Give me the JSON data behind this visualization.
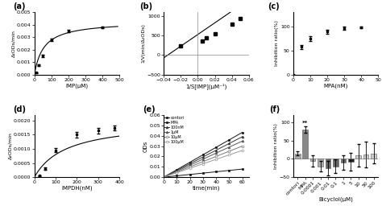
{
  "panel_a": {
    "label": "(a)",
    "x": [
      10,
      25,
      50,
      100,
      200,
      400
    ],
    "y": [
      0.00015,
      0.00075,
      0.0015,
      0.0028,
      0.0035,
      0.0038
    ],
    "yerr": [
      3e-05,
      6e-05,
      8e-05,
      0.0001,
      8e-05,
      7e-05
    ],
    "Vmax": 0.0043,
    "Km": 55,
    "xlabel": "IMP(μM)",
    "ylabel": "Δ₂ODs/min",
    "xlim": [
      0,
      500
    ],
    "ylim": [
      0,
      0.005
    ],
    "xticks": [
      0,
      100,
      200,
      300,
      400,
      500
    ],
    "yticks": [
      0.0,
      0.001,
      0.002,
      0.003,
      0.004,
      0.005
    ]
  },
  "panel_b": {
    "label": "(b)",
    "x": [
      -0.02,
      0.005,
      0.01,
      0.02,
      0.04,
      0.05
    ],
    "y": [
      230,
      355,
      435,
      550,
      800,
      950
    ],
    "slope": 15000,
    "intercept": 530,
    "xlabel": "1/S[IMP](μM⁻¹)",
    "ylabel": "1/V(min/Δ₂ODs)",
    "xlim": [
      -0.04,
      0.06
    ],
    "ylim": [
      -500,
      1100
    ],
    "xticks": [
      -0.04,
      -0.02,
      0.0,
      0.02,
      0.04,
      0.06
    ],
    "yticks": [
      -500,
      0,
      500,
      1000
    ]
  },
  "panel_c": {
    "label": "(c)",
    "x": [
      0,
      5,
      10,
      20,
      30,
      40
    ],
    "y": [
      0,
      58,
      75,
      90,
      97,
      99
    ],
    "yerr": [
      0,
      4,
      5,
      4,
      3,
      2
    ],
    "xlabel": "MPA(nM)",
    "ylabel": "Inhibition ratio(%)",
    "xlim": [
      0,
      50
    ],
    "ylim": [
      0,
      130
    ],
    "xticks": [
      0,
      10,
      20,
      30,
      40,
      50
    ],
    "yticks": [
      0,
      50,
      100
    ]
  },
  "panel_d": {
    "label": "(d)",
    "x": [
      25,
      50,
      100,
      200,
      300,
      375
    ],
    "y": [
      5e-05,
      0.0003,
      0.00095,
      0.0015,
      0.00165,
      0.00175
    ],
    "yerr": [
      2e-05,
      4e-05,
      7e-05,
      9e-05,
      0.0001,
      9e-05
    ],
    "Vmax": 0.002,
    "Km": 150,
    "xlabel": "IMPDH(nM)",
    "ylabel": "Δ₂ODs/min",
    "xlim": [
      0,
      400
    ],
    "ylim": [
      0,
      0.0022
    ],
    "xticks": [
      0,
      100,
      200,
      300,
      400
    ],
    "yticks": [
      0.0,
      0.0005,
      0.001,
      0.0015,
      0.002
    ]
  },
  "panel_e": {
    "label": "(e)",
    "time": [
      0,
      10,
      20,
      30,
      40,
      50,
      60
    ],
    "series": [
      {
        "label": "contori",
        "slope": 0.00072,
        "marker": "s",
        "color": "#111111",
        "mfc": "#111111"
      },
      {
        "label": "MPA",
        "slope": 0.00013,
        "marker": "s",
        "color": "#111111",
        "mfc": "#111111"
      },
      {
        "label": "100nM",
        "slope": 0.00065,
        "marker": "^",
        "color": "#333333",
        "mfc": "#333333"
      },
      {
        "label": "1μM",
        "slope": 0.00058,
        "marker": "^",
        "color": "#555555",
        "mfc": "#555555"
      },
      {
        "label": "10μM",
        "slope": 0.0005,
        "marker": "o",
        "color": "#777777",
        "mfc": "white"
      },
      {
        "label": "100μM",
        "slope": 0.00043,
        "marker": "o",
        "color": "#999999",
        "mfc": "white"
      }
    ],
    "xlabel": "time(min)",
    "ylabel": "ODs",
    "ylim": [
      0,
      0.06
    ],
    "xlim": [
      0,
      65
    ],
    "xticks": [
      0,
      10,
      20,
      30,
      40,
      50,
      60
    ],
    "yticks": [
      0.0,
      0.01,
      0.02,
      0.03,
      0.04,
      0.05,
      0.06
    ]
  },
  "panel_f": {
    "label": "(f)",
    "categories": [
      "contori",
      "MPA",
      "0.0001",
      "0.001",
      "0.01",
      "0.1",
      "1",
      "5",
      "10",
      "50",
      "100"
    ],
    "values": [
      15,
      80,
      -5,
      -20,
      -25,
      -20,
      -10,
      -8,
      10,
      12,
      15
    ],
    "errors": [
      5,
      8,
      15,
      15,
      20,
      18,
      20,
      25,
      30,
      35,
      28
    ],
    "colors": [
      "#aaaaaa",
      "#888888",
      "#aaaaaa",
      "#aaaaaa",
      "#666666",
      "#666666",
      "#666666",
      "#222222",
      "#cccccc",
      "#cccccc",
      "#cccccc"
    ],
    "xlabel": "Bicyclol(μM)",
    "ylabel": "Inhibition ratio(%)",
    "ylim": [
      -50,
      120
    ],
    "yticks": [
      -50,
      0,
      50,
      100
    ],
    "annotation": "**"
  }
}
